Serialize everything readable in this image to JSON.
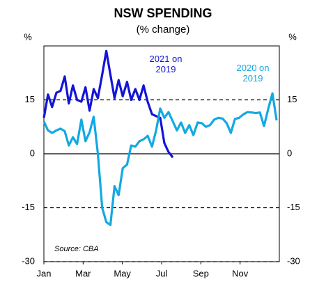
{
  "chart_data": {
    "type": "line",
    "title": "NSW SPENDING",
    "subtitle": "(% change)",
    "y_label": "%",
    "y2_label": "%",
    "source": "Source:  CBA",
    "x": [
      0,
      0.21,
      0.42,
      0.64,
      0.85,
      1.06,
      1.27,
      1.48,
      1.69,
      1.91,
      2.12,
      2.33,
      2.54,
      2.75,
      2.97,
      3.18,
      3.39,
      3.6,
      3.81,
      4.02,
      4.24,
      4.45,
      4.66,
      4.87,
      5.08,
      5.29,
      5.51,
      5.72,
      5.93,
      6.14,
      6.35,
      6.57,
      6.78,
      6.99,
      7.2,
      7.41,
      7.62,
      7.84,
      8.05,
      8.26,
      8.47,
      8.68,
      8.9,
      9.11,
      9.32,
      9.53,
      9.74,
      9.95,
      10.17,
      10.38,
      10.59,
      10.8,
      11.01,
      11.22,
      11.44,
      11.65,
      11.86
    ],
    "series": [
      {
        "name": "2021 on 2019",
        "color": "#1414d8",
        "values": [
          10,
          16.5,
          13,
          17,
          17.5,
          21.5,
          14,
          19,
          15,
          14.5,
          18.5,
          12,
          18,
          15.5,
          22,
          28.6,
          22,
          15.5,
          20.5,
          16,
          20,
          15,
          18,
          15,
          19,
          14.5,
          11,
          10.5,
          10,
          3,
          0.5,
          -1,
          null,
          null,
          null,
          null,
          null,
          null,
          null,
          null,
          null,
          null,
          null,
          null,
          null,
          null,
          null,
          null,
          null,
          null,
          null,
          null,
          null,
          null,
          null,
          null,
          null
        ]
      },
      {
        "name": "2020 on 2019",
        "color": "#12a9e2",
        "values": [
          9,
          6.5,
          5.8,
          6.5,
          7,
          6.3,
          2.3,
          4.6,
          2.7,
          9.5,
          3.5,
          6,
          10.3,
          0,
          -15,
          -19,
          -19.8,
          -9,
          -11.5,
          -4,
          -3,
          2.3,
          2,
          3.5,
          4,
          5,
          2,
          6.5,
          12.6,
          10,
          11.6,
          9,
          6.5,
          8.7,
          5.8,
          8,
          5.2,
          8.7,
          8.5,
          7.5,
          8,
          9.5,
          10,
          9.8,
          8.5,
          5.8,
          9.7,
          10,
          11,
          11.6,
          11.5,
          11.3,
          11.5,
          7.7,
          12.6,
          16.8,
          9.3
        ]
      }
    ],
    "xlim": [
      0,
      12
    ],
    "xticks": [
      {
        "value": 0,
        "label": "Jan"
      },
      {
        "value": 2,
        "label": "Mar"
      },
      {
        "value": 4,
        "label": "May"
      },
      {
        "value": 6,
        "label": "Jul"
      },
      {
        "value": 8,
        "label": "Sep"
      },
      {
        "value": 10,
        "label": "Nov"
      }
    ],
    "ylim": [
      -30,
      30
    ],
    "yticks": [
      -30,
      -15,
      0,
      15
    ],
    "y2lim": [
      -30,
      30
    ],
    "y2ticks": [
      -30,
      -15,
      0,
      15
    ],
    "grid": "dashed",
    "zero_line": true
  }
}
